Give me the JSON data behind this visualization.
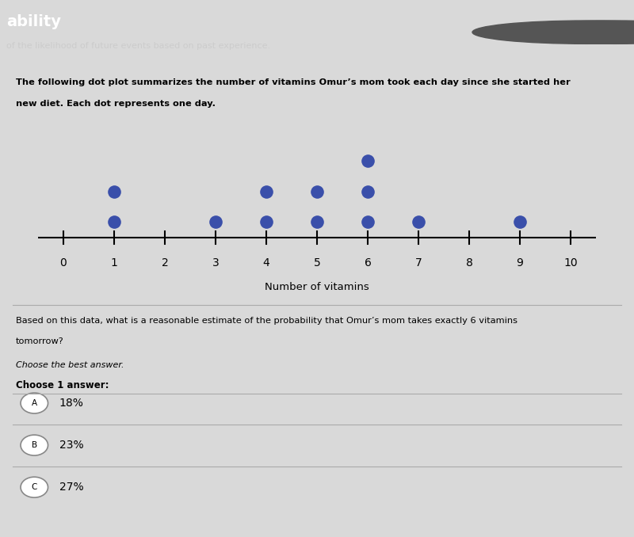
{
  "title_line1": "The following dot plot summarizes the number of vitamins Omur’s mom took each day since she started her",
  "title_line2": "new diet. Each dot represents one day.",
  "header_line1": "ability",
  "header_line2": "of the likelihood of future events based on past experience.",
  "dot_counts": {
    "1": 2,
    "3": 1,
    "4": 2,
    "5": 2,
    "6": 3,
    "7": 1,
    "9": 1
  },
  "x_min": 0,
  "x_max": 10,
  "xlabel": "Number of vitamins",
  "dot_color": "#3a4faa",
  "dot_size": 120,
  "question_line1": "Based on this data, what is a reasonable estimate of the probability that Omur’s mom takes exactly 6 vitamins",
  "question_line2": "tomorrow?",
  "instruction1": "Choose the best answer.",
  "instruction2": "Choose 1 answer:",
  "choices": [
    {
      "label": "A",
      "text": "18%"
    },
    {
      "label": "B",
      "text": "23%"
    },
    {
      "label": "C",
      "text": "27%"
    }
  ],
  "bg_color": "#d9d9d9",
  "panel_color": "#f0f0ee",
  "header_bg": "#2c2c2c"
}
